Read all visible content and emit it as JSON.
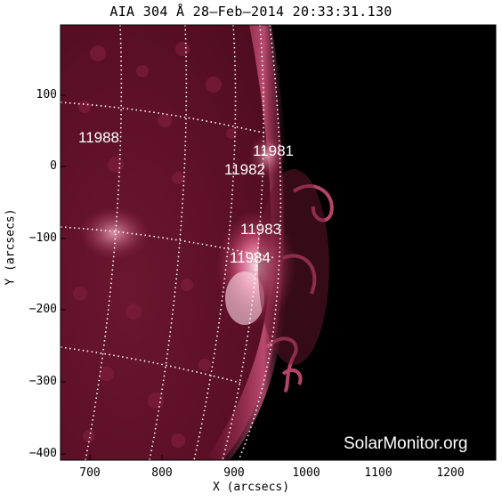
{
  "title": "AIA 304 Å 28–Feb–2014 20:33:31.130",
  "xlabel": "X (arcsecs)",
  "ylabel": "Y (arcsecs)",
  "xticks": [
    "700",
    "800",
    "900",
    "1000",
    "1100",
    "1200"
  ],
  "yticks": [
    "100",
    "0",
    "−100",
    "−200",
    "−300",
    "−400"
  ],
  "regions": [
    {
      "label": "11988"
    },
    {
      "label": "11981"
    },
    {
      "label": "11982"
    },
    {
      "label": "11983"
    },
    {
      "label": "11984"
    }
  ],
  "watermark": "SolarMonitor.org",
  "colors": {
    "background": "#000000",
    "disk_base": "#5a0f26",
    "bright": "#ffd6e6",
    "mid": "#c9406f"
  }
}
